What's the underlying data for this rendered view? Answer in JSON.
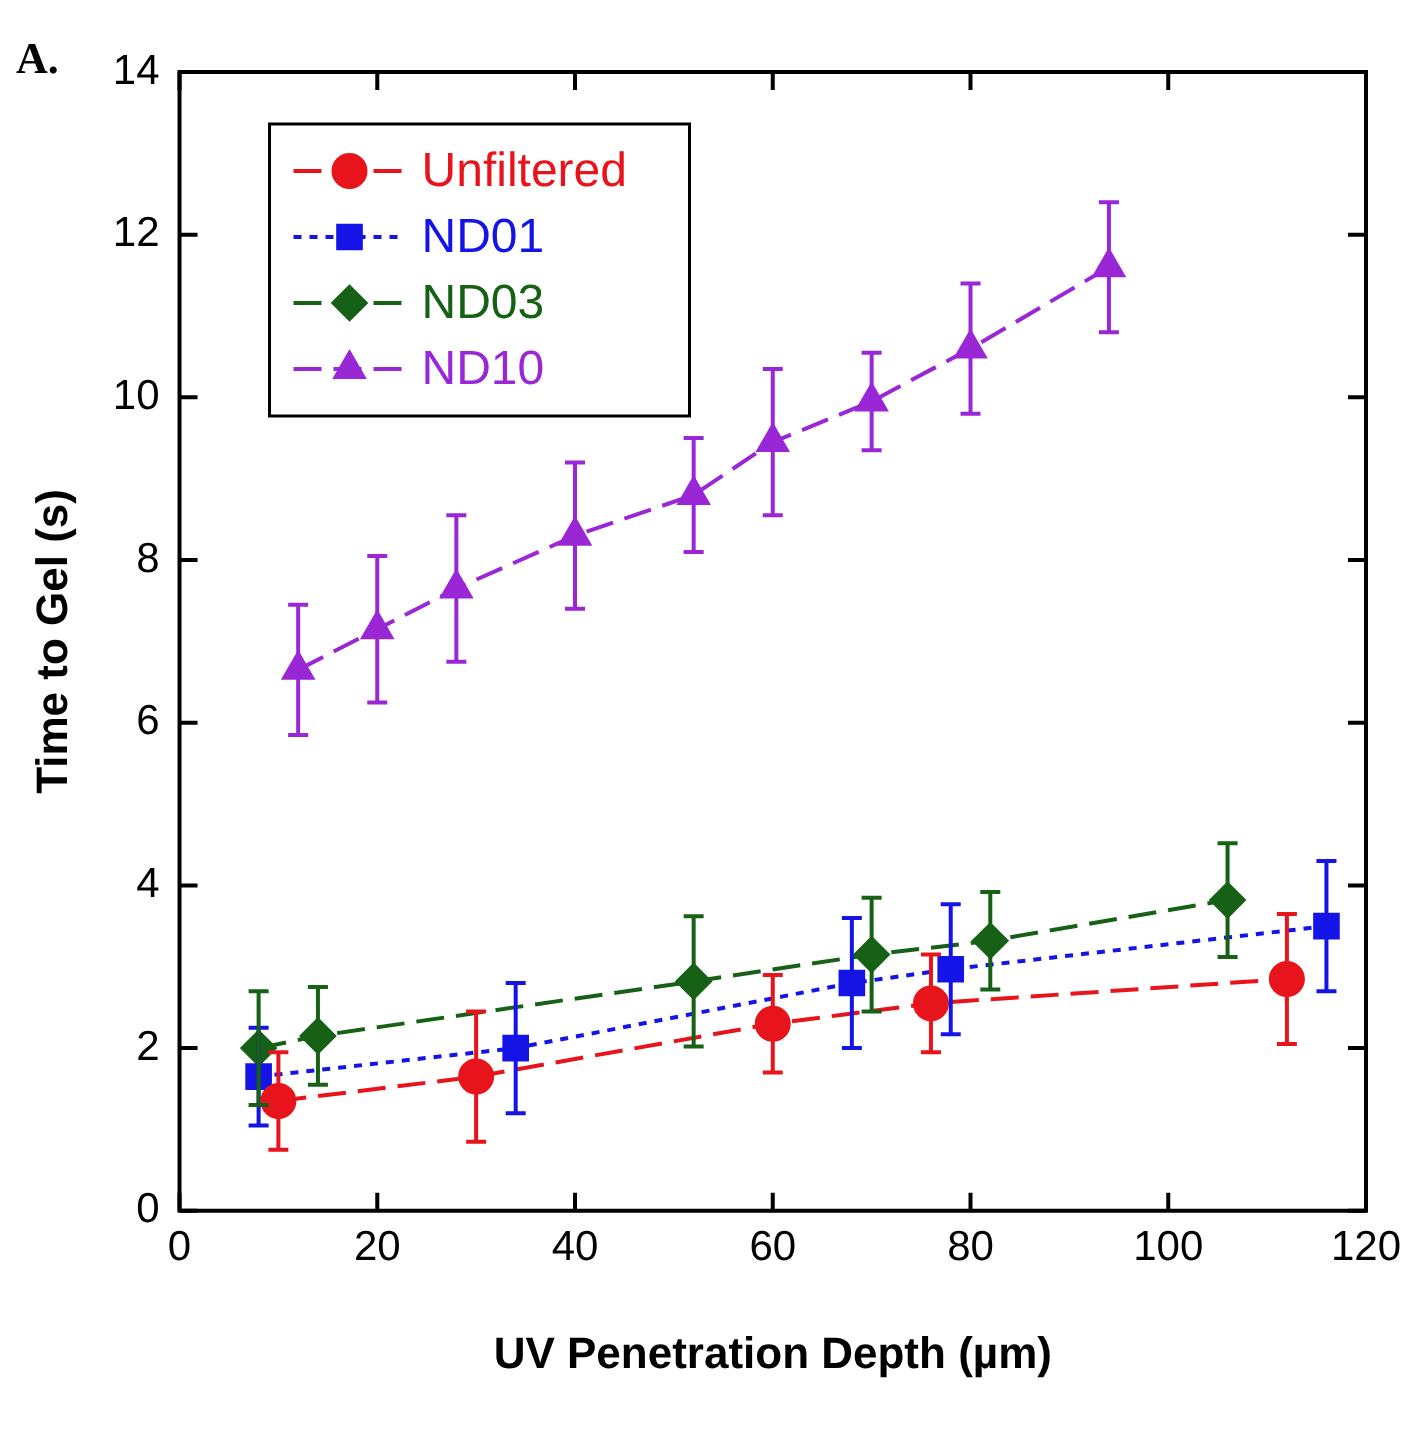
{
  "chart_data": {
    "type": "line",
    "xlabel": "UV Penetration Depth (µm)",
    "ylabel": "Time to Gel (s)",
    "annotations": [
      "A."
    ],
    "xlim": [
      0,
      120
    ],
    "xticks": [
      0,
      20,
      40,
      60,
      80,
      100,
      120
    ],
    "ylim": [
      0,
      14
    ],
    "yticks": [
      0,
      2,
      4,
      6,
      8,
      10,
      12,
      14
    ],
    "grid": false,
    "legend": "top left",
    "series": [
      {
        "name": "Unfiltered",
        "color": "#e8141b",
        "marker": "circle",
        "line_style": "dashed",
        "x": [
          10,
          30,
          60,
          76,
          112
        ],
        "values": [
          1.35,
          1.65,
          2.3,
          2.55,
          2.85
        ],
        "errors": [
          0.6,
          0.8,
          0.6,
          0.6,
          0.8
        ]
      },
      {
        "name": "ND01",
        "color": "#1414e6",
        "marker": "square",
        "line_style": "dotted",
        "x": [
          8,
          34,
          68,
          78,
          116
        ],
        "values": [
          1.65,
          2.0,
          2.8,
          2.97,
          3.5
        ],
        "errors": [
          0.6,
          0.8,
          0.8,
          0.8,
          0.8
        ]
      },
      {
        "name": "ND03",
        "color": "#176117",
        "marker": "diamond",
        "line_style": "dashed",
        "x": [
          8,
          14,
          52,
          70,
          82,
          106
        ],
        "values": [
          2.0,
          2.15,
          2.82,
          3.15,
          3.32,
          3.82
        ],
        "errors": [
          0.7,
          0.6,
          0.8,
          0.7,
          0.6,
          0.7
        ]
      },
      {
        "name": "ND10",
        "color": "#9a27d6",
        "marker": "triangle",
        "line_style": "dashed",
        "x": [
          12,
          20,
          28,
          40,
          52,
          60,
          70,
          80,
          94
        ],
        "values": [
          6.65,
          7.15,
          7.65,
          8.3,
          8.8,
          9.45,
          9.95,
          10.6,
          11.6
        ],
        "errors": [
          0.8,
          0.9,
          0.9,
          0.9,
          0.7,
          0.9,
          0.6,
          0.8,
          0.8
        ]
      }
    ]
  }
}
